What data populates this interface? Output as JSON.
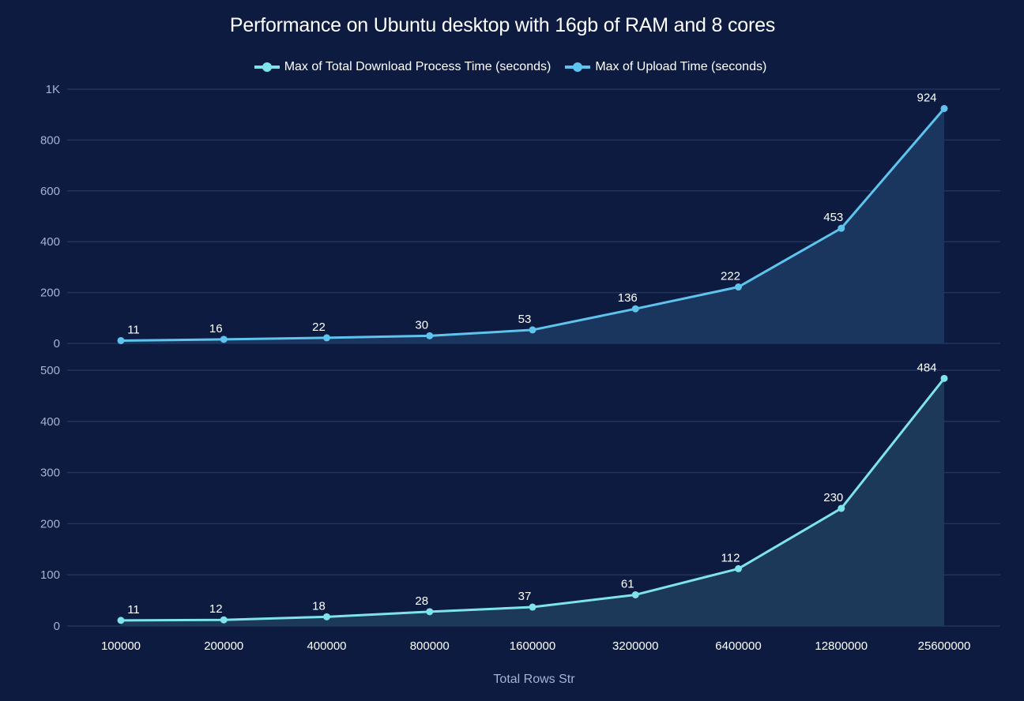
{
  "chart_data": {
    "type": "area",
    "title": "Performance on Ubuntu desktop with 16gb of RAM and 8 cores",
    "xlabel": "Total Rows Str",
    "categories": [
      "100000",
      "200000",
      "400000",
      "800000",
      "1600000",
      "3200000",
      "6400000",
      "12800000",
      "25600000"
    ],
    "legend": {
      "position": "top-center",
      "entries": [
        {
          "name": "Max of Total Download Process Time (seconds)",
          "color": "#7fe3ee"
        },
        {
          "name": "Max of Upload Time (seconds)",
          "color": "#5ec4ee"
        }
      ]
    },
    "panels": [
      {
        "series": "Max of Upload Time (seconds)",
        "color": "#5ec4ee",
        "fill": "#1b3760",
        "values": [
          11,
          16,
          22,
          30,
          53,
          136,
          222,
          453,
          924
        ],
        "ylim": [
          0,
          1000
        ],
        "yticks": [
          0,
          200,
          400,
          600,
          800,
          1000
        ],
        "ytick_labels": [
          "0",
          "200",
          "400",
          "600",
          "800",
          "1K"
        ],
        "grid": true
      },
      {
        "series": "Max of Total Download Process Time (seconds)",
        "color": "#7fe3ee",
        "fill": "#1f3b5c",
        "values": [
          11,
          12,
          18,
          28,
          37,
          61,
          112,
          230,
          484
        ],
        "ylim": [
          0,
          500
        ],
        "yticks": [
          0,
          100,
          200,
          300,
          400,
          500
        ],
        "ytick_labels": [
          "0",
          "100",
          "200",
          "300",
          "400",
          "500"
        ],
        "grid": true
      }
    ]
  }
}
